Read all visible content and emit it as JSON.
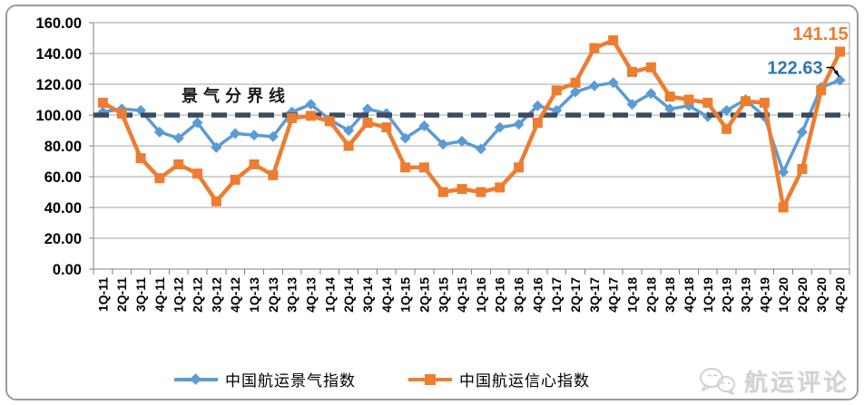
{
  "chart_data": {
    "type": "line",
    "categories": [
      "1Q-11",
      "2Q-11",
      "3Q-11",
      "4Q-11",
      "1Q-12",
      "2Q-12",
      "3Q-12",
      "4Q-12",
      "1Q-13",
      "2Q-13",
      "3Q-13",
      "4Q-13",
      "1Q-14",
      "2Q-14",
      "3Q-14",
      "4Q-14",
      "1Q-15",
      "2Q-15",
      "3Q-15",
      "4Q-15",
      "1Q-16",
      "2Q-16",
      "3Q-16",
      "4Q-16",
      "1Q-17",
      "2Q-17",
      "3Q-17",
      "4Q-17",
      "1Q-18",
      "2Q-18",
      "3Q-18",
      "4Q-18",
      "1Q-19",
      "2Q-19",
      "3Q-19",
      "4Q-19",
      "1Q-20",
      "2Q-20",
      "3Q-20",
      "4Q-20"
    ],
    "series": [
      {
        "name": "中国航运景气指数",
        "color": "#5B9BD5",
        "marker": "diamond",
        "values": [
          102,
          104,
          103,
          89,
          85,
          95,
          79,
          88,
          87,
          86,
          102,
          107,
          97,
          90,
          104,
          101,
          85,
          93,
          81,
          83,
          78,
          92,
          94,
          106,
          103,
          115,
          119,
          121,
          107,
          114,
          104,
          106,
          99,
          103,
          110,
          99,
          63,
          89,
          118,
          122.63
        ]
      },
      {
        "name": "中国航运信心指数",
        "color": "#ED7D31",
        "marker": "square",
        "values": [
          108,
          101,
          72,
          59,
          68,
          62,
          44,
          58,
          68,
          61,
          98,
          99.5,
          96,
          80,
          95,
          92,
          66,
          66,
          50,
          52,
          50,
          53,
          66,
          95,
          116,
          121,
          143.5,
          148.5,
          128,
          131,
          112,
          110,
          108,
          91,
          109,
          108,
          40,
          65,
          116,
          141.15
        ]
      }
    ],
    "ylim": [
      0,
      160
    ],
    "ytick_step": 20,
    "ytick_labels": [
      "0.00",
      "20.00",
      "40.00",
      "60.00",
      "80.00",
      "100.00",
      "120.00",
      "140.00",
      "160.00"
    ],
    "xlabel": "",
    "ylabel": "",
    "title": "",
    "grid": true,
    "legend_position": "bottom",
    "reference_line": {
      "value": 100,
      "label": "景气分界线",
      "color": "#3A4B5F",
      "style": "dashed"
    },
    "annotations": [
      {
        "series_index": 1,
        "text": "141.15",
        "color": "#ED7D31"
      },
      {
        "series_index": 0,
        "text": "122.63",
        "color": "#2E75B6"
      }
    ]
  },
  "colors": {
    "grid": "#A6A6A6",
    "axis": "#808080",
    "axis_text": "#000000"
  },
  "watermark": {
    "text": "航运评论"
  }
}
